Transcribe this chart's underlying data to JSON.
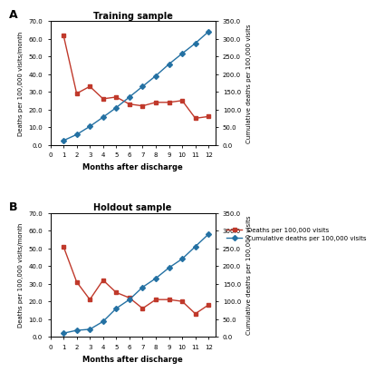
{
  "panel_A": {
    "title": "Training sample",
    "months": [
      1,
      2,
      3,
      4,
      5,
      6,
      7,
      8,
      9,
      10,
      11,
      12
    ],
    "deaths_per_100k": [
      62,
      29,
      33,
      26,
      27,
      23,
      22,
      24,
      24,
      25,
      15,
      16
    ],
    "cumulative": [
      12,
      29,
      52,
      78,
      105,
      135,
      165,
      195,
      228,
      258,
      287,
      320
    ]
  },
  "panel_B": {
    "title": "Holdout sample",
    "months": [
      1,
      2,
      3,
      4,
      5,
      6,
      7,
      8,
      9,
      10,
      11,
      12
    ],
    "deaths_per_100k": [
      51,
      31,
      21,
      32,
      25,
      22,
      16,
      21,
      21,
      20,
      13,
      18
    ],
    "cumulative": [
      10,
      18,
      21,
      43,
      80,
      105,
      140,
      165,
      195,
      220,
      255,
      290
    ]
  },
  "red_color": "#c0392b",
  "blue_color": "#2471a3",
  "left_ylim": [
    0,
    70
  ],
  "left_yticks": [
    0,
    10,
    20,
    30,
    40,
    50,
    60,
    70
  ],
  "left_yticklabels": [
    "0.0",
    "10.0",
    "20.0",
    "30.0",
    "40.0",
    "50.0",
    "60.0",
    "70.0"
  ],
  "right_ylim": [
    0,
    350
  ],
  "right_yticks": [
    0,
    50,
    100,
    150,
    200,
    250,
    300,
    350
  ],
  "right_yticklabels": [
    "0.0",
    "50.0",
    "100.0",
    "150.0",
    "200.0",
    "250.0",
    "300.0",
    "350.0"
  ],
  "xlabel": "Months after discharge",
  "left_ylabel": "Deaths per 100,000 visits/month",
  "right_ylabel": "Cumulative deaths per 100,000 visits",
  "legend_deaths": "Deaths per 100,000 visits",
  "legend_cumulative": "Cumulative deaths per 100,000 visits",
  "xticks": [
    0,
    1,
    2,
    3,
    4,
    5,
    6,
    7,
    8,
    9,
    10,
    11,
    12
  ],
  "xlim": [
    0,
    12.5
  ]
}
